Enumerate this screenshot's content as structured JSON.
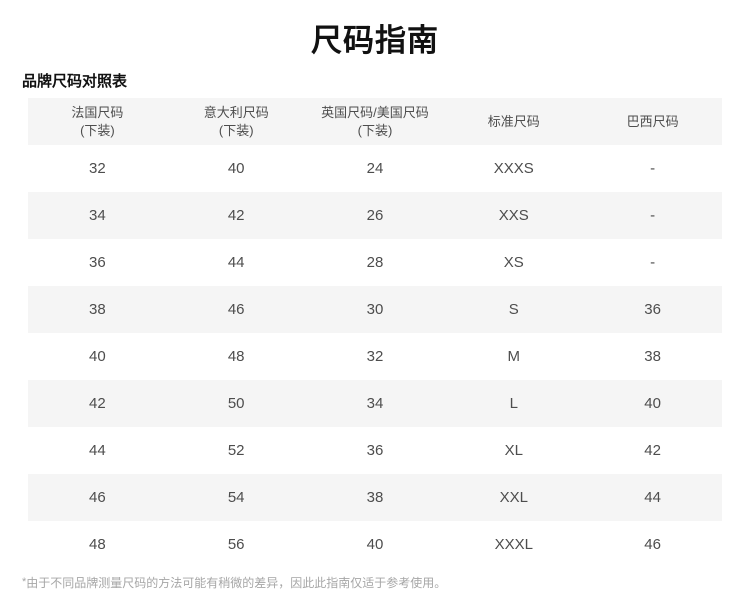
{
  "page": {
    "title": "尺码指南",
    "section_title": "品牌尺码对照表",
    "footnote_star": "*",
    "footnote_text": "由于不同品牌测量尺码的方法可能有稍微的差异，因此此指南仅适于参考使用。"
  },
  "table": {
    "headers": [
      {
        "line1": "法国尺码",
        "line2": "(下装)"
      },
      {
        "line1": "意大利尺码",
        "line2": "(下装)"
      },
      {
        "line1": "英国尺码/美国尺码",
        "line2": "(下装)"
      },
      {
        "line1": "标准尺码",
        "line2": ""
      },
      {
        "line1": "巴西尺码",
        "line2": ""
      }
    ],
    "rows": [
      [
        "32",
        "40",
        "24",
        "XXXS",
        "-"
      ],
      [
        "34",
        "42",
        "26",
        "XXS",
        "-"
      ],
      [
        "36",
        "44",
        "28",
        "XS",
        "-"
      ],
      [
        "38",
        "46",
        "30",
        "S",
        "36"
      ],
      [
        "40",
        "48",
        "32",
        "M",
        "38"
      ],
      [
        "42",
        "50",
        "34",
        "L",
        "40"
      ],
      [
        "44",
        "52",
        "36",
        "XL",
        "42"
      ],
      [
        "46",
        "54",
        "38",
        "XXL",
        "44"
      ],
      [
        "48",
        "56",
        "40",
        "XXXL",
        "46"
      ]
    ]
  },
  "colors": {
    "page_background": "#ffffff",
    "stripe_background": "#f5f5f5",
    "title_text": "#111111",
    "table_text": "#4d4d4d",
    "footnote_text": "#a6a6a6"
  }
}
